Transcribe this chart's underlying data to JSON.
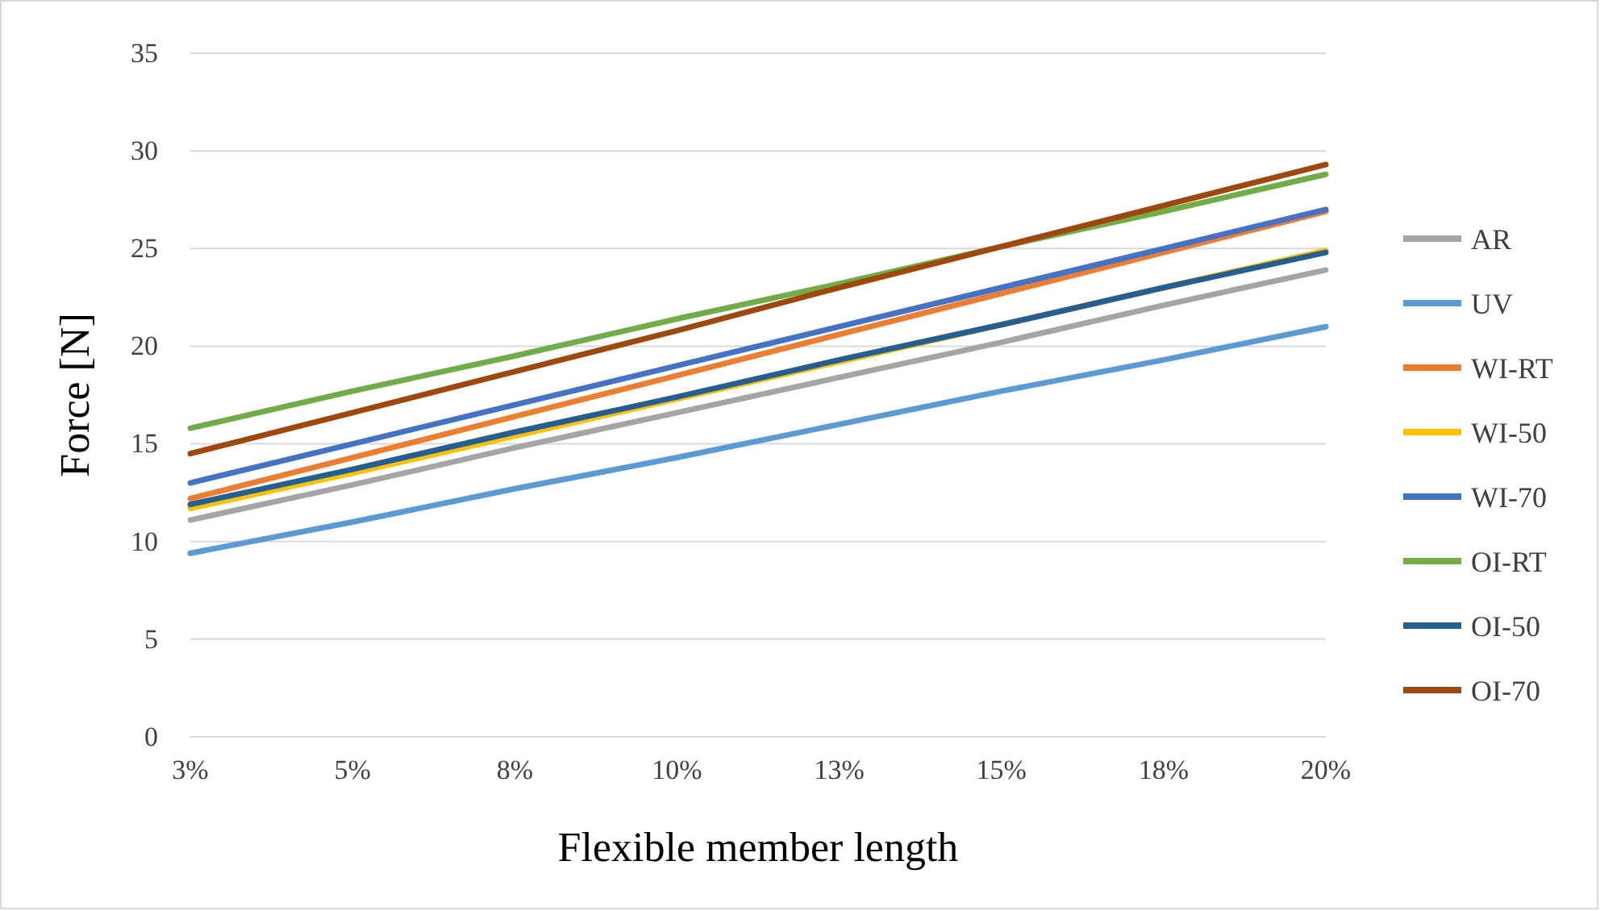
{
  "chart_data": {
    "type": "line",
    "xlabel": "Flexible member length",
    "ylabel": "Force [N]",
    "categories": [
      "3%",
      "5%",
      "8%",
      "10%",
      "13%",
      "15%",
      "18%",
      "20%"
    ],
    "ylim": [
      0,
      35
    ],
    "yticks": [
      0,
      5,
      10,
      15,
      20,
      25,
      30,
      35
    ],
    "grid": "y",
    "legend": "right",
    "marker": "none",
    "line_style": "solid",
    "series": [
      {
        "name": "AR",
        "color": "#a5a5a5",
        "values": [
          11.1,
          12.9,
          14.8,
          16.6,
          18.4,
          20.2,
          22.1,
          23.9
        ]
      },
      {
        "name": "UV",
        "color": "#5b9bd5",
        "values": [
          9.4,
          11.0,
          12.7,
          14.3,
          16.0,
          17.7,
          19.3,
          21.0
        ]
      },
      {
        "name": "WI-RT",
        "color": "#ed7d31",
        "values": [
          12.2,
          14.3,
          16.4,
          18.5,
          20.6,
          22.7,
          24.8,
          26.9
        ]
      },
      {
        "name": "WI-50",
        "color": "#ffc000",
        "values": [
          11.7,
          13.5,
          15.4,
          17.3,
          19.2,
          21.1,
          23.0,
          24.9
        ]
      },
      {
        "name": "WI-70",
        "color": "#4472c4",
        "values": [
          13.0,
          15.0,
          17.0,
          19.0,
          21.0,
          23.0,
          25.0,
          27.0
        ]
      },
      {
        "name": "OI-RT",
        "color": "#70ad47",
        "values": [
          15.8,
          17.7,
          19.5,
          21.4,
          23.2,
          25.1,
          26.9,
          28.8
        ]
      },
      {
        "name": "OI-50",
        "color": "#255e91",
        "values": [
          11.9,
          13.7,
          15.6,
          17.4,
          19.3,
          21.1,
          23.0,
          24.8
        ]
      },
      {
        "name": "OI-70",
        "color": "#9e480e",
        "values": [
          14.5,
          16.6,
          18.7,
          20.8,
          23.0,
          25.1,
          27.2,
          29.3
        ]
      }
    ]
  }
}
